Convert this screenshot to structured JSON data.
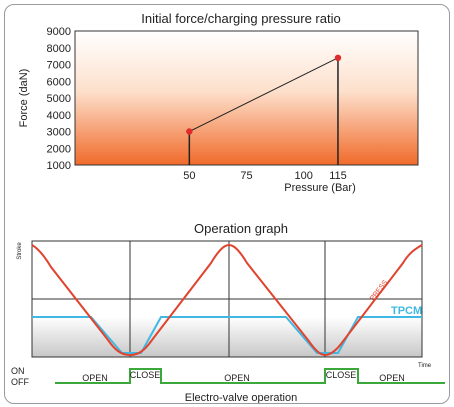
{
  "chart_data": [
    {
      "type": "scatter",
      "title": "Initial force/charging pressure ratio",
      "xlabel": "Pressure (Bar)",
      "ylabel": "Force (daN)",
      "x_ticks": [
        50,
        75,
        100,
        115
      ],
      "y_ticks": [
        1000,
        2000,
        3000,
        4000,
        5000,
        6000,
        7000,
        8000,
        9000
      ],
      "xlim": [
        0,
        150
      ],
      "ylim": [
        1000,
        9000
      ],
      "points": [
        {
          "x": 50,
          "y": 3000
        },
        {
          "x": 115,
          "y": 7400
        }
      ],
      "colors": {
        "point": "#e02b2b",
        "gradient_top": "#ffffff",
        "gradient_bottom": "#f06a2a"
      }
    },
    {
      "type": "line",
      "title": "Operation graph",
      "ylabel": "Stroke",
      "xlabel": "Time",
      "series": [
        {
          "name": "PRESS",
          "color": "#e0442f"
        },
        {
          "name": "TPCM",
          "color": "#3fb9e4"
        }
      ],
      "electro_valve": {
        "title": "Electro-valve operation",
        "state_labels": [
          "ON",
          "OFF"
        ],
        "segments": [
          {
            "label": "OPEN",
            "state": "off"
          },
          {
            "label": "CLOSE",
            "state": "on"
          },
          {
            "label": "OPEN",
            "state": "off"
          },
          {
            "label": "CLOSE",
            "state": "on"
          },
          {
            "label": "OPEN",
            "state": "off"
          }
        ],
        "color": "#3aa83a"
      }
    }
  ]
}
